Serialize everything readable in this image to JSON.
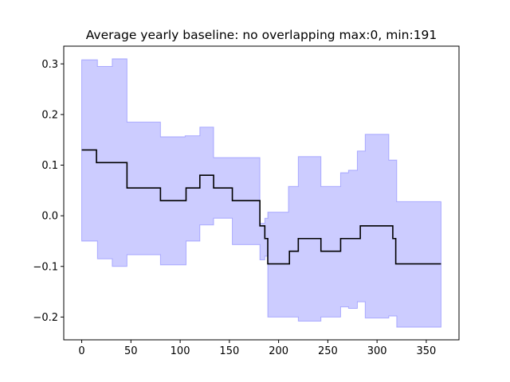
{
  "chart_data": {
    "type": "line",
    "title": "Average yearly baseline: no overlapping max:0, min:191",
    "xlabel": "",
    "ylabel": "",
    "xlim": [
      -18.25,
      383.25
    ],
    "ylim": [
      -0.245,
      0.335
    ],
    "x_ticks": [
      0,
      50,
      100,
      150,
      200,
      250,
      300,
      350
    ],
    "y_ticks": [
      0.3,
      0.2,
      0.1,
      0.0,
      -0.1,
      -0.2
    ],
    "x_tick_labels": [
      "0",
      "50",
      "100",
      "150",
      "200",
      "250",
      "300",
      "350"
    ],
    "y_tick_labels": [
      "0.3",
      "0.2",
      "0.1",
      "0.0",
      "−0.1",
      "−0.2"
    ],
    "grid": false,
    "legend": "none",
    "series": [
      {
        "role": "mean",
        "color": "#000000",
        "points": [
          [
            0,
            0.13
          ],
          [
            15,
            0.13
          ],
          [
            15,
            0.105
          ],
          [
            46,
            0.105
          ],
          [
            46,
            0.055
          ],
          [
            80,
            0.055
          ],
          [
            80,
            0.03
          ],
          [
            106,
            0.03
          ],
          [
            106,
            0.055
          ],
          [
            120,
            0.055
          ],
          [
            120,
            0.08
          ],
          [
            134,
            0.08
          ],
          [
            134,
            0.055
          ],
          [
            153,
            0.055
          ],
          [
            153,
            0.03
          ],
          [
            181,
            0.03
          ],
          [
            181,
            -0.02
          ],
          [
            186,
            -0.02
          ],
          [
            186,
            -0.045
          ],
          [
            189,
            -0.045
          ],
          [
            189,
            -0.095
          ],
          [
            211,
            -0.095
          ],
          [
            211,
            -0.07
          ],
          [
            220,
            -0.07
          ],
          [
            220,
            -0.045
          ],
          [
            243,
            -0.045
          ],
          [
            243,
            -0.07
          ],
          [
            263,
            -0.07
          ],
          [
            263,
            -0.045
          ],
          [
            283,
            -0.045
          ],
          [
            283,
            -0.02
          ],
          [
            316,
            -0.02
          ],
          [
            316,
            -0.045
          ],
          [
            319,
            -0.045
          ],
          [
            319,
            -0.095
          ],
          [
            365,
            -0.095
          ]
        ]
      },
      {
        "role": "band",
        "color": "#0000ff",
        "fill_opacity": 0.2,
        "upper": [
          [
            0,
            0.308
          ],
          [
            16,
            0.308
          ],
          [
            16,
            0.295
          ],
          [
            31,
            0.295
          ],
          [
            31,
            0.31
          ],
          [
            46,
            0.31
          ],
          [
            46,
            0.185
          ],
          [
            80,
            0.185
          ],
          [
            80,
            0.156
          ],
          [
            105,
            0.156
          ],
          [
            105,
            0.158
          ],
          [
            120,
            0.158
          ],
          [
            120,
            0.175
          ],
          [
            134,
            0.175
          ],
          [
            134,
            0.115
          ],
          [
            156,
            0.115
          ],
          [
            156,
            0.115
          ],
          [
            181,
            0.115
          ],
          [
            181,
            -0.015
          ],
          [
            186,
            -0.015
          ],
          [
            186,
            -0.005
          ],
          [
            189,
            -0.005
          ],
          [
            189,
            0.007
          ],
          [
            210,
            0.007
          ],
          [
            210,
            0.058
          ],
          [
            220,
            0.058
          ],
          [
            220,
            0.117
          ],
          [
            243,
            0.117
          ],
          [
            243,
            0.058
          ],
          [
            263,
            0.058
          ],
          [
            263,
            0.085
          ],
          [
            271,
            0.085
          ],
          [
            271,
            0.09
          ],
          [
            280,
            0.09
          ],
          [
            280,
            0.128
          ],
          [
            288,
            0.128
          ],
          [
            288,
            0.161
          ],
          [
            312,
            0.161
          ],
          [
            312,
            0.11
          ],
          [
            320,
            0.11
          ],
          [
            320,
            0.028
          ],
          [
            365,
            0.028
          ]
        ],
        "lower": [
          [
            0,
            -0.05
          ],
          [
            16,
            -0.05
          ],
          [
            16,
            -0.085
          ],
          [
            31,
            -0.085
          ],
          [
            31,
            -0.1
          ],
          [
            46,
            -0.1
          ],
          [
            46,
            -0.077
          ],
          [
            80,
            -0.077
          ],
          [
            80,
            -0.097
          ],
          [
            106,
            -0.097
          ],
          [
            106,
            -0.05
          ],
          [
            120,
            -0.05
          ],
          [
            120,
            -0.018
          ],
          [
            134,
            -0.018
          ],
          [
            134,
            -0.005
          ],
          [
            153,
            -0.005
          ],
          [
            153,
            -0.057
          ],
          [
            181,
            -0.057
          ],
          [
            181,
            -0.087
          ],
          [
            186,
            -0.087
          ],
          [
            186,
            -0.08
          ],
          [
            189,
            -0.08
          ],
          [
            189,
            -0.2
          ],
          [
            211,
            -0.2
          ],
          [
            211,
            -0.2
          ],
          [
            220,
            -0.2
          ],
          [
            220,
            -0.208
          ],
          [
            243,
            -0.208
          ],
          [
            243,
            -0.2
          ],
          [
            263,
            -0.2
          ],
          [
            263,
            -0.18
          ],
          [
            271,
            -0.18
          ],
          [
            271,
            -0.183
          ],
          [
            280,
            -0.183
          ],
          [
            280,
            -0.17
          ],
          [
            288,
            -0.17
          ],
          [
            288,
            -0.202
          ],
          [
            312,
            -0.202
          ],
          [
            312,
            -0.198
          ],
          [
            320,
            -0.198
          ],
          [
            320,
            -0.22
          ],
          [
            365,
            -0.22
          ]
        ]
      }
    ]
  }
}
